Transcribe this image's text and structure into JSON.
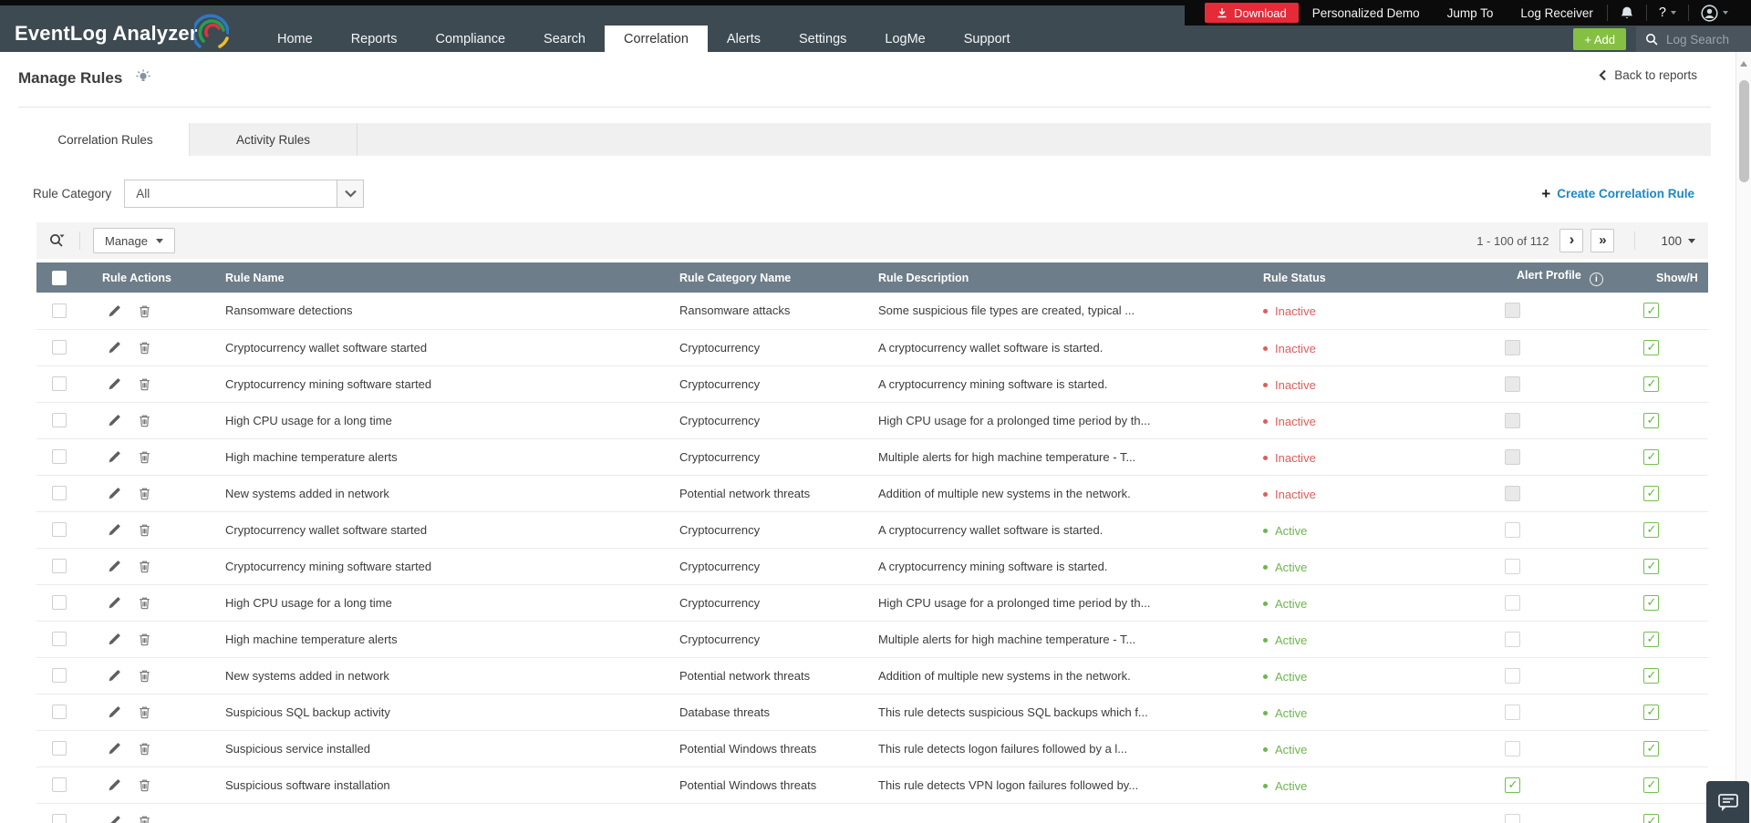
{
  "colors": {
    "topbar_bg": "#3d4a52",
    "download_red": "#e52b38",
    "add_green": "#85c043",
    "link_blue": "#1d87c4",
    "table_header_bg": "#6d7d89",
    "status_active_green": "#6db54e",
    "status_inactive_red": "#e05c5c",
    "checkbox_check_green": "#5eb73e"
  },
  "topbar": {
    "logo": "EventLog Analyzer",
    "nav": [
      {
        "label": "Home",
        "active": false
      },
      {
        "label": "Reports",
        "active": false
      },
      {
        "label": "Compliance",
        "active": false
      },
      {
        "label": "Search",
        "active": false
      },
      {
        "label": "Correlation",
        "active": true
      },
      {
        "label": "Alerts",
        "active": false
      },
      {
        "label": "Settings",
        "active": false
      },
      {
        "label": "LogMe",
        "active": false
      },
      {
        "label": "Support",
        "active": false
      }
    ],
    "download_label": "Download",
    "utility_links": [
      "Personalized Demo",
      "Jump To",
      "Log Receiver"
    ],
    "help_label": "?",
    "add_label": "+ Add",
    "log_search_label": "Log Search"
  },
  "page": {
    "title": "Manage Rules",
    "back_label": "Back to reports"
  },
  "tabs": {
    "correlation": "Correlation Rules",
    "activity": "Activity Rules"
  },
  "filter": {
    "label": "Rule Category",
    "value": "All"
  },
  "create_rule_label": "Create Correlation Rule",
  "toolbar": {
    "manage_label": "Manage",
    "page_range": "1 - 100 of 112",
    "page_size": "100"
  },
  "table": {
    "columns": [
      "Rule Actions",
      "Rule Name",
      "Rule Category Name",
      "Rule Description",
      "Rule Status",
      "Alert Profile",
      "Show/H"
    ],
    "rows": [
      {
        "name": "Ransomware detections",
        "category": "Ransomware attacks",
        "description": "Some suspicious file types are created, typical ...",
        "status": "Inactive",
        "alert_checked": false,
        "alert_disabled": true,
        "show_checked": true
      },
      {
        "name": "Cryptocurrency wallet software started",
        "category": "Cryptocurrency",
        "description": "A cryptocurrency wallet software is started.",
        "status": "Inactive",
        "alert_checked": false,
        "alert_disabled": true,
        "show_checked": true
      },
      {
        "name": "Cryptocurrency mining software started",
        "category": "Cryptocurrency",
        "description": "A cryptocurrency mining software is started.",
        "status": "Inactive",
        "alert_checked": false,
        "alert_disabled": true,
        "show_checked": true
      },
      {
        "name": "High CPU usage for a long time",
        "category": "Cryptocurrency",
        "description": "High CPU usage for a prolonged time period by th...",
        "status": "Inactive",
        "alert_checked": false,
        "alert_disabled": true,
        "show_checked": true
      },
      {
        "name": "High machine temperature alerts",
        "category": "Cryptocurrency",
        "description": "Multiple alerts for high machine temperature - T...",
        "status": "Inactive",
        "alert_checked": false,
        "alert_disabled": true,
        "show_checked": true
      },
      {
        "name": "New systems added in network",
        "category": "Potential network threats",
        "description": "Addition of multiple new systems in the network.",
        "status": "Inactive",
        "alert_checked": false,
        "alert_disabled": true,
        "show_checked": true
      },
      {
        "name": "Cryptocurrency wallet software started",
        "category": "Cryptocurrency",
        "description": "A cryptocurrency wallet software is started.",
        "status": "Active",
        "alert_checked": false,
        "alert_disabled": false,
        "show_checked": true
      },
      {
        "name": "Cryptocurrency mining software started",
        "category": "Cryptocurrency",
        "description": "A cryptocurrency mining software is started.",
        "status": "Active",
        "alert_checked": false,
        "alert_disabled": false,
        "show_checked": true
      },
      {
        "name": "High CPU usage for a long time",
        "category": "Cryptocurrency",
        "description": "High CPU usage for a prolonged time period by th...",
        "status": "Active",
        "alert_checked": false,
        "alert_disabled": false,
        "show_checked": true
      },
      {
        "name": "High machine temperature alerts",
        "category": "Cryptocurrency",
        "description": "Multiple alerts for high machine temperature - T...",
        "status": "Active",
        "alert_checked": false,
        "alert_disabled": false,
        "show_checked": true
      },
      {
        "name": "New systems added in network",
        "category": "Potential network threats",
        "description": "Addition of multiple new systems in the network.",
        "status": "Active",
        "alert_checked": false,
        "alert_disabled": false,
        "show_checked": true
      },
      {
        "name": "Suspicious SQL backup activity",
        "category": "Database threats",
        "description": "This rule detects suspicious SQL backups which f...",
        "status": "Active",
        "alert_checked": false,
        "alert_disabled": false,
        "show_checked": true
      },
      {
        "name": "Suspicious service installed",
        "category": "Potential Windows threats",
        "description": "This rule detects logon failures followed by a l...",
        "status": "Active",
        "alert_checked": false,
        "alert_disabled": false,
        "show_checked": true
      },
      {
        "name": "Suspicious software installation",
        "category": "Potential Windows threats",
        "description": "This rule detects VPN logon failures followed by...",
        "status": "Active",
        "alert_checked": true,
        "alert_disabled": false,
        "show_checked": true
      },
      {
        "name": "",
        "category": "",
        "description": "",
        "status": "",
        "alert_checked": false,
        "alert_disabled": false,
        "show_checked": true,
        "partial": true
      }
    ]
  }
}
